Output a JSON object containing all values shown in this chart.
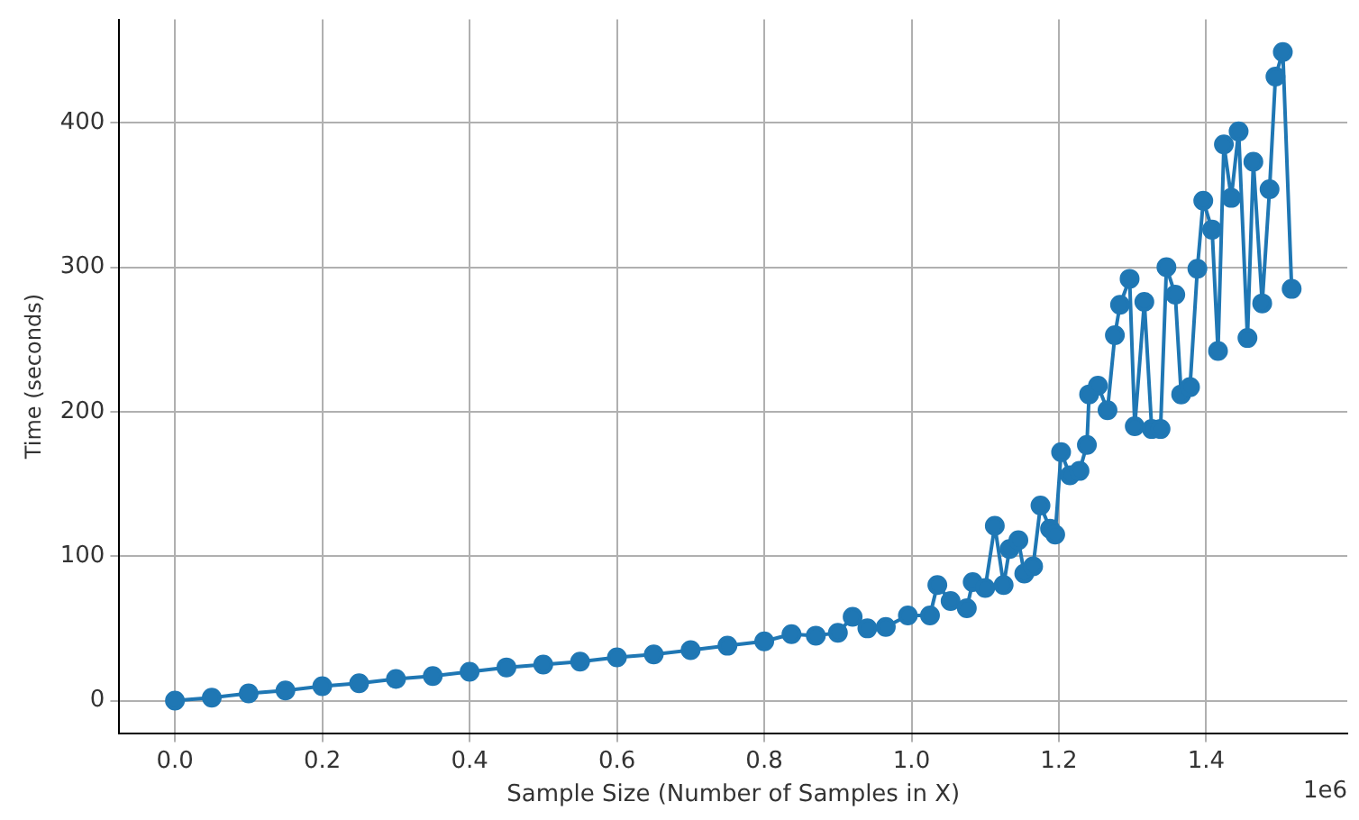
{
  "chart_data": {
    "type": "line",
    "xlabel": "Sample Size (Number of Samples in X)",
    "ylabel": "Time (seconds)",
    "annotations": [
      "1e6"
    ],
    "x": [
      0,
      0.05,
      0.1,
      0.15,
      0.2,
      0.25,
      0.3,
      0.35,
      0.4,
      0.45,
      0.5,
      0.55,
      0.6,
      0.65,
      0.7,
      0.75,
      0.8,
      0.837,
      0.87,
      0.9,
      0.92,
      0.94,
      0.965,
      0.995,
      1.025,
      1.035,
      1.053,
      1.075,
      1.083,
      1.1,
      1.113,
      1.125,
      1.133,
      1.145,
      1.153,
      1.165,
      1.175,
      1.188,
      1.195,
      1.203,
      1.215,
      1.228,
      1.238,
      1.241,
      1.253,
      1.266,
      1.276,
      1.283,
      1.296,
      1.303,
      1.316,
      1.326,
      1.338,
      1.346,
      1.358,
      1.366,
      1.378,
      1.388,
      1.396,
      1.408,
      1.416,
      1.424,
      1.434,
      1.444,
      1.456,
      1.464,
      1.476,
      1.486,
      1.494,
      1.504,
      1.516
    ],
    "series": [
      {
        "color": "#1f77b4",
        "values": [
          0,
          2,
          5,
          7,
          10,
          12,
          15,
          17,
          20,
          23,
          25,
          27,
          30,
          32,
          35,
          38,
          41,
          46,
          45,
          47,
          58,
          50,
          51,
          59,
          59,
          80,
          69,
          64,
          82,
          78,
          121,
          80,
          105,
          111,
          88,
          93,
          135,
          119,
          115,
          172,
          156,
          159,
          177,
          212,
          218,
          201,
          253,
          274,
          292,
          190,
          276,
          188,
          188,
          300,
          281,
          212,
          217,
          299,
          346,
          326,
          242,
          385,
          348,
          394,
          251,
          373,
          275,
          354,
          432,
          449,
          285
        ]
      }
    ],
    "xlim": [
      -0.0755,
      1.5915
    ],
    "xticks": [
      {
        "value": 0,
        "label": "0.0"
      },
      0.2,
      0.4,
      0.6,
      0.8,
      {
        "value": 1,
        "label": "1.0"
      },
      1.2,
      1.4
    ],
    "ylim": [
      -22.5,
      471.5
    ],
    "yticks": [
      0,
      100,
      200,
      300,
      400
    ],
    "grid": true,
    "marker": "circle",
    "line_style": "solid"
  }
}
